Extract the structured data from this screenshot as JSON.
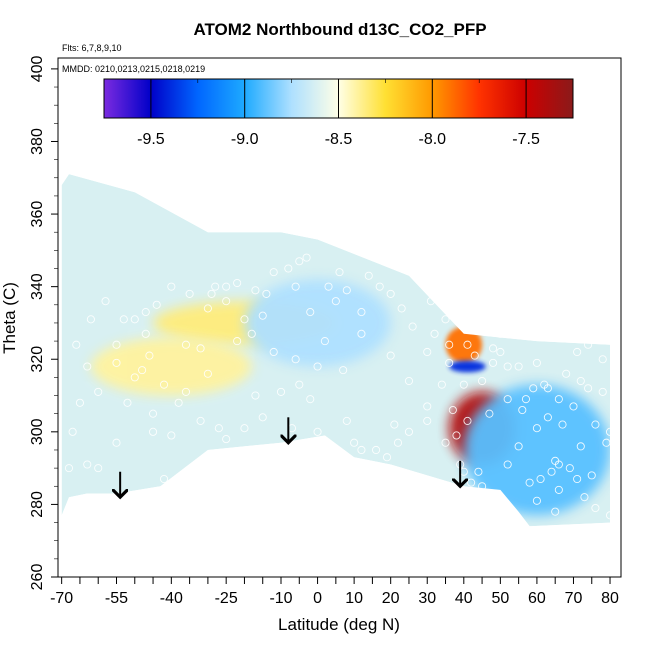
{
  "chart_data": {
    "type": "heatmap",
    "title": "ATOM2 Northbound d13C_CO2_PFP",
    "subtitle_flights": "Flts: 6,7,8,9,10",
    "subtitle_dates": "MMDD: 0210,0213,0215,0218,0219",
    "xlabel": "Latitude (deg N)",
    "ylabel": "Theta (C)",
    "xlim": [
      -71,
      83
    ],
    "ylim": [
      260,
      403
    ],
    "x_ticks": [
      -70,
      -55,
      -40,
      -25,
      -10,
      0,
      10,
      20,
      30,
      40,
      50,
      60,
      70,
      80
    ],
    "x_tick_labels": [
      "-70",
      "-55",
      "-40",
      "-25",
      "-10",
      "0",
      "10",
      "20",
      "30",
      "40",
      "50",
      "60",
      "70",
      "80"
    ],
    "x_minor_ticks": [
      -65,
      -60,
      -50,
      -45,
      -35,
      -30,
      -20,
      -15,
      -5,
      5,
      15,
      25,
      35,
      45,
      55,
      65,
      75
    ],
    "y_ticks": [
      260,
      280,
      300,
      320,
      340,
      360,
      380,
      400
    ],
    "y_tick_labels": [
      "260",
      "280",
      "300",
      "320",
      "340",
      "360",
      "380",
      "400"
    ],
    "colorbar": {
      "range": [
        -9.75,
        -7.25
      ],
      "ticks": [
        -9.5,
        -9.0,
        -8.5,
        -8.0,
        -7.5
      ],
      "tick_labels": [
        "-9.5",
        "-9.0",
        "-8.5",
        "-8.0",
        "-7.5"
      ],
      "colors": [
        "#7b2be0",
        "#0000c8",
        "#0066ff",
        "#1eaaff",
        "#aee0ff",
        "#ffffe6",
        "#ffe033",
        "#ff9900",
        "#ff3300",
        "#cc0000",
        "#8b1a1a"
      ]
    },
    "field_outline": [
      [
        -70,
        277
      ],
      [
        -68,
        282
      ],
      [
        -63,
        283
      ],
      [
        -55,
        283
      ],
      [
        -43,
        285
      ],
      [
        -30,
        295
      ],
      [
        -10,
        297
      ],
      [
        2,
        299
      ],
      [
        10,
        293
      ],
      [
        20,
        291
      ],
      [
        30,
        288
      ],
      [
        40,
        285
      ],
      [
        50,
        284
      ],
      [
        55,
        278
      ],
      [
        58,
        274
      ],
      [
        80,
        275
      ],
      [
        80,
        324
      ],
      [
        60,
        325
      ],
      [
        40,
        327
      ],
      [
        25,
        343
      ],
      [
        20,
        345
      ],
      [
        0,
        353
      ],
      [
        -10,
        355
      ],
      [
        -30,
        355
      ],
      [
        -50,
        366
      ],
      [
        -68,
        371
      ],
      [
        -70,
        368
      ]
    ],
    "anomalies": [
      {
        "lat": 45,
        "theta": 301,
        "value": -7.4,
        "rx": 9,
        "ry": 10
      },
      {
        "lat": 40,
        "theta": 324,
        "value": -7.9,
        "rx": 5,
        "ry": 5
      },
      {
        "lat": 41,
        "theta": 318,
        "value": -9.4,
        "rx": 5,
        "ry": 1.6
      },
      {
        "lat": 60,
        "theta": 295,
        "value": -8.9,
        "rx": 20,
        "ry": 18
      },
      {
        "lat": -20,
        "theta": 330,
        "value": -8.35,
        "rx": 25,
        "ry": 6
      },
      {
        "lat": -40,
        "theta": 318,
        "value": -8.4,
        "rx": 22,
        "ry": 8
      },
      {
        "lat": 0,
        "theta": 330,
        "value": -8.75,
        "rx": 20,
        "ry": 12
      }
    ],
    "samples": [
      [
        -68,
        290
      ],
      [
        -67,
        300
      ],
      [
        -65,
        308
      ],
      [
        -63,
        291
      ],
      [
        -60,
        290
      ],
      [
        -55,
        297
      ],
      [
        -55,
        324
      ],
      [
        -53,
        331
      ],
      [
        -50,
        331
      ],
      [
        -47,
        333
      ],
      [
        -47,
        327
      ],
      [
        -48,
        317
      ],
      [
        -45,
        305
      ],
      [
        -45,
        300
      ],
      [
        -42,
        287
      ],
      [
        -40,
        299
      ],
      [
        -36,
        311
      ],
      [
        -32,
        323
      ],
      [
        -30,
        334
      ],
      [
        -29,
        338
      ],
      [
        -28,
        340
      ],
      [
        -25,
        340
      ],
      [
        -22,
        341
      ],
      [
        -22,
        325
      ],
      [
        -20,
        331
      ],
      [
        -17,
        339
      ],
      [
        -14,
        338
      ],
      [
        -12,
        344
      ],
      [
        -8,
        345
      ],
      [
        -5,
        347
      ],
      [
        -3,
        348
      ],
      [
        -25,
        298
      ],
      [
        -17,
        310
      ],
      [
        -10,
        311
      ],
      [
        -7,
        301
      ],
      [
        0,
        300
      ],
      [
        -8,
        290
      ],
      [
        8,
        303
      ],
      [
        10,
        297
      ],
      [
        12,
        295
      ],
      [
        16,
        295
      ],
      [
        19,
        293
      ],
      [
        21,
        302
      ],
      [
        7,
        317
      ],
      [
        5,
        336
      ],
      [
        8,
        339
      ],
      [
        12,
        333
      ],
      [
        14,
        343
      ],
      [
        17,
        340
      ],
      [
        20,
        338
      ],
      [
        23,
        334
      ],
      [
        26,
        329
      ],
      [
        27,
        343
      ],
      [
        31,
        336
      ],
      [
        12,
        327
      ],
      [
        20,
        321
      ],
      [
        30,
        322
      ],
      [
        25,
        314
      ],
      [
        34,
        313
      ],
      [
        37,
        306
      ],
      [
        30,
        307
      ],
      [
        36,
        319
      ],
      [
        40,
        313
      ],
      [
        41,
        324
      ],
      [
        43,
        321
      ],
      [
        45,
        314
      ],
      [
        48,
        319
      ],
      [
        50,
        322
      ],
      [
        47,
        305
      ],
      [
        52,
        309
      ],
      [
        55,
        318
      ],
      [
        60,
        319
      ],
      [
        63,
        312
      ],
      [
        66,
        309
      ],
      [
        63,
        304
      ],
      [
        67,
        302
      ],
      [
        70,
        307
      ],
      [
        72,
        314
      ],
      [
        71,
        322
      ],
      [
        74,
        324
      ],
      [
        78,
        320
      ],
      [
        78,
        311
      ],
      [
        76,
        302
      ],
      [
        79,
        297
      ],
      [
        80,
        300
      ],
      [
        58,
        286
      ],
      [
        61,
        287
      ],
      [
        64,
        289
      ],
      [
        66,
        291
      ],
      [
        69,
        290
      ],
      [
        71,
        287
      ],
      [
        73,
        282
      ],
      [
        76,
        279
      ],
      [
        80,
        277
      ],
      [
        66,
        284
      ],
      [
        60,
        281
      ],
      [
        65,
        278
      ],
      [
        55,
        296
      ],
      [
        60,
        301
      ],
      [
        57,
        309
      ],
      [
        62,
        313
      ],
      [
        68,
        316
      ],
      [
        74,
        312
      ],
      [
        72,
        296
      ],
      [
        75,
        288
      ],
      [
        44,
        289
      ],
      [
        40,
        289
      ],
      [
        38,
        299
      ],
      [
        41,
        303
      ],
      [
        36,
        324
      ],
      [
        35,
        331
      ],
      [
        32,
        327
      ],
      [
        44,
        331
      ],
      [
        48,
        323
      ],
      [
        50,
        327
      ],
      [
        52,
        318
      ],
      [
        56,
        306
      ],
      [
        59,
        312
      ],
      [
        65,
        292
      ],
      [
        52,
        291
      ],
      [
        45,
        285
      ],
      [
        42,
        286
      ],
      [
        39,
        291
      ],
      [
        35,
        297
      ],
      [
        30,
        303
      ],
      [
        25,
        300
      ],
      [
        22,
        297
      ],
      [
        -2,
        309
      ],
      [
        -5,
        313
      ],
      [
        -15,
        304
      ],
      [
        -20,
        301
      ],
      [
        -27,
        301
      ],
      [
        -32,
        303
      ],
      [
        -38,
        308
      ],
      [
        -42,
        313
      ],
      [
        -50,
        315
      ],
      [
        -55,
        319
      ],
      [
        -60,
        311
      ],
      [
        -63,
        318
      ],
      [
        -66,
        324
      ],
      [
        -62,
        331
      ],
      [
        -58,
        336
      ],
      [
        -44,
        335
      ],
      [
        -40,
        340
      ],
      [
        -35,
        338
      ],
      [
        -25,
        336
      ],
      [
        -18,
        327
      ],
      [
        -12,
        322
      ],
      [
        -6,
        320
      ],
      [
        0,
        318
      ],
      [
        2,
        325
      ],
      [
        -2,
        333
      ],
      [
        3,
        340
      ],
      [
        6,
        344
      ],
      [
        -6,
        340
      ],
      [
        -15,
        332
      ],
      [
        -30,
        316
      ],
      [
        -36,
        324
      ],
      [
        -46,
        321
      ],
      [
        -52,
        308
      ]
    ],
    "annotations": [
      {
        "type": "arrow",
        "lat": -54,
        "theta_start": 289,
        "theta_end": 282
      },
      {
        "type": "arrow",
        "lat": -8,
        "theta_start": 304,
        "theta_end": 297
      },
      {
        "type": "arrow",
        "lat": 39,
        "theta_start": 292,
        "theta_end": 285
      }
    ]
  }
}
